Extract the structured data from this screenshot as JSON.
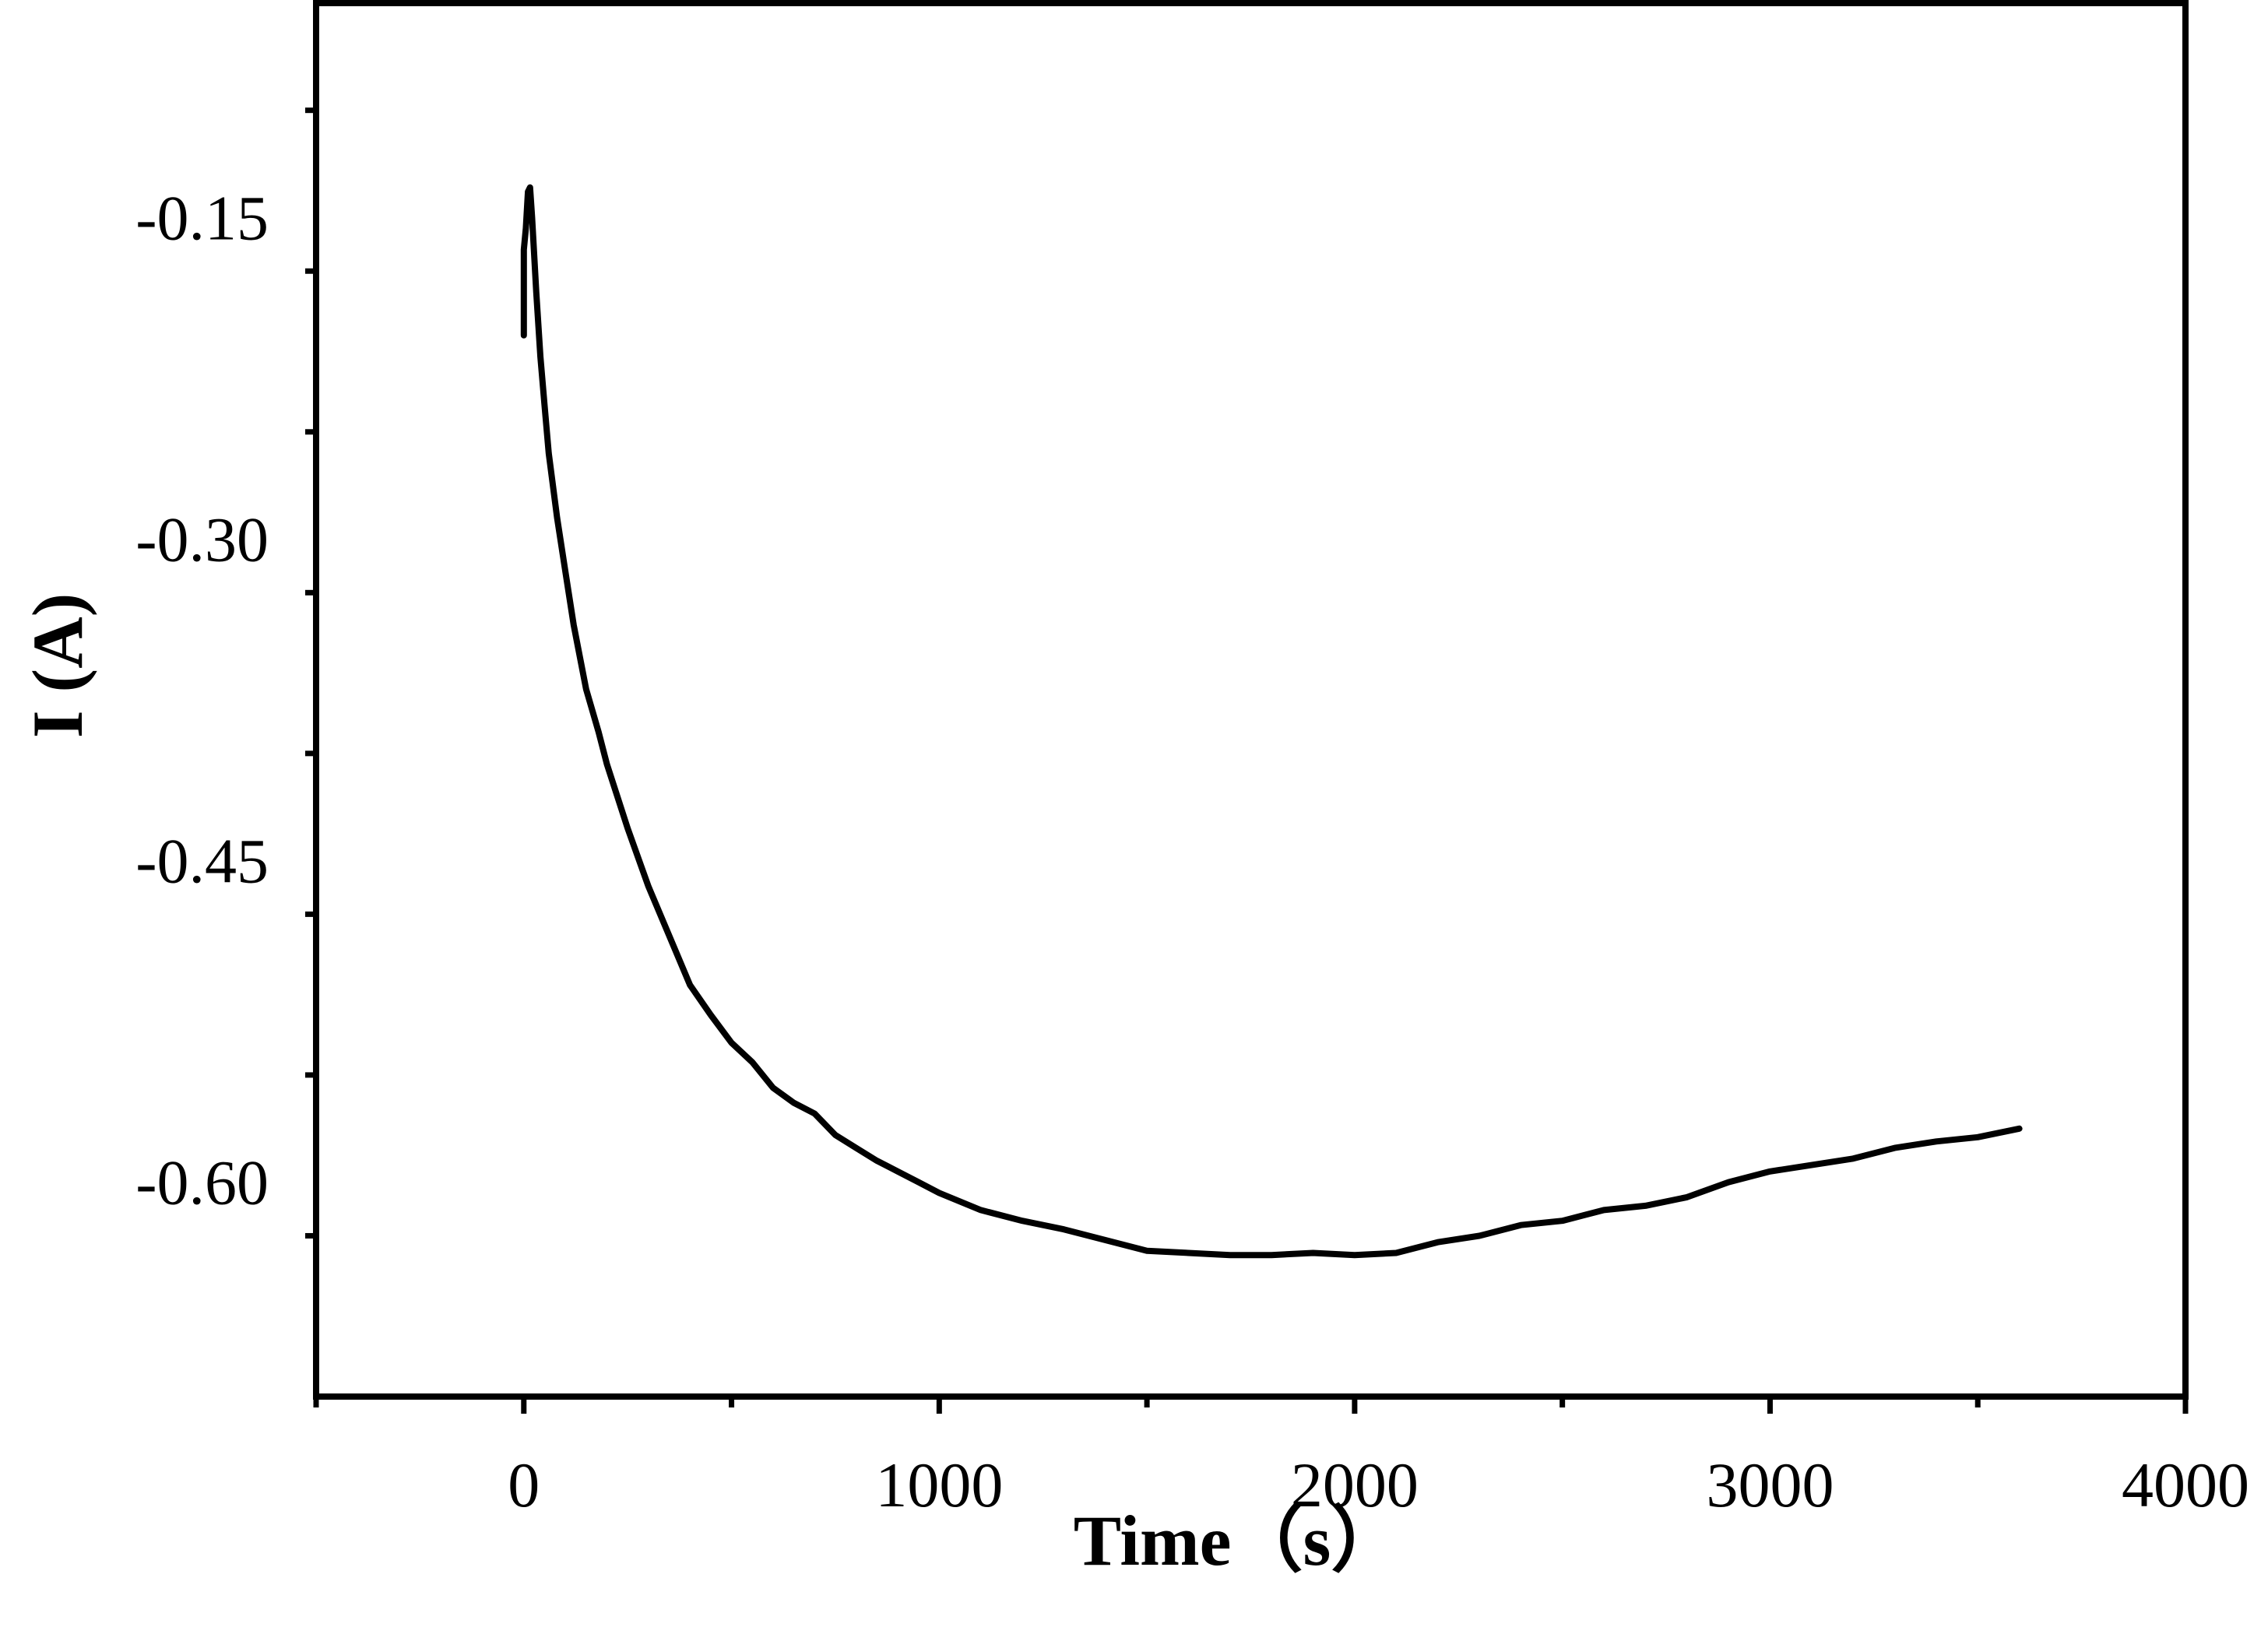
{
  "chart_data": {
    "type": "line",
    "title": "",
    "xlabel": "Time（s）",
    "ylabel": "I (A)",
    "xlim": [
      -500,
      4000
    ],
    "ylim": [
      -0.7,
      -0.05
    ],
    "x_ticks": [
      0,
      1000,
      2000,
      3000,
      4000
    ],
    "x_tick_labels": [
      "0",
      "1000",
      "2000",
      "3000",
      "4000"
    ],
    "y_ticks": [
      -0.15,
      -0.3,
      -0.45,
      -0.6
    ],
    "y_tick_labels": [
      "-0.15",
      "-0.30",
      "-0.45",
      "-0.60"
    ],
    "grid": false,
    "line_color": "#000000",
    "series": [
      {
        "x": [
          0,
          0,
          5,
          10,
          15,
          20,
          30,
          40,
          50,
          60,
          80,
          100,
          120,
          150,
          180,
          200,
          250,
          300,
          350,
          400,
          450,
          500,
          550,
          600,
          650,
          700,
          750,
          800,
          850,
          900,
          950,
          1000,
          1050,
          1100,
          1200,
          1300,
          1400,
          1500,
          1600,
          1700,
          1800,
          1900,
          2000,
          2100,
          2200,
          2300,
          2400,
          2500,
          2600,
          2700,
          2800,
          2900,
          3000,
          3100,
          3200,
          3300,
          3400,
          3500,
          3600
        ],
        "y": [
          -0.205,
          -0.165,
          -0.155,
          -0.138,
          -0.136,
          -0.15,
          -0.185,
          -0.215,
          -0.238,
          -0.26,
          -0.29,
          -0.315,
          -0.34,
          -0.37,
          -0.39,
          -0.405,
          -0.435,
          -0.462,
          -0.485,
          -0.508,
          -0.522,
          -0.535,
          -0.544,
          -0.556,
          -0.563,
          -0.568,
          -0.578,
          -0.584,
          -0.59,
          -0.595,
          -0.6,
          -0.605,
          -0.609,
          -0.613,
          -0.618,
          -0.622,
          -0.627,
          -0.632,
          -0.633,
          -0.634,
          -0.634,
          -0.633,
          -0.634,
          -0.633,
          -0.628,
          -0.625,
          -0.62,
          -0.618,
          -0.613,
          -0.611,
          -0.607,
          -0.6,
          -0.595,
          -0.592,
          -0.589,
          -0.584,
          -0.581,
          -0.579,
          -0.575
        ]
      }
    ]
  }
}
